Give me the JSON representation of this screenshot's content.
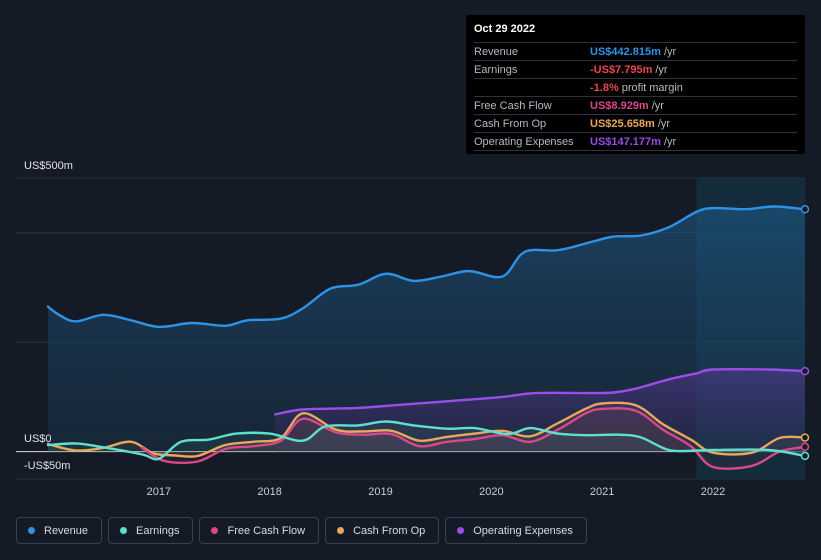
{
  "tooltip": {
    "date": "Oct 29 2022",
    "rows": [
      {
        "label": "Revenue",
        "value": "US$442.815m",
        "unit": "/yr",
        "color": "#2e93e6"
      },
      {
        "label": "Earnings",
        "value": "-US$7.795m",
        "unit": "/yr",
        "color": "#e84a4a"
      },
      {
        "label": "",
        "value": "-1.8%",
        "unit": "profit margin",
        "color": "#e84a4a"
      },
      {
        "label": "Free Cash Flow",
        "value": "US$8.929m",
        "unit": "/yr",
        "color": "#d9488a"
      },
      {
        "label": "Cash From Op",
        "value": "US$25.658m",
        "unit": "/yr",
        "color": "#e8a75c"
      },
      {
        "label": "Operating Expenses",
        "value": "US$147.177m",
        "unit": "/yr",
        "color": "#9b4de8"
      }
    ]
  },
  "legend": [
    {
      "label": "Revenue",
      "color": "#2e93e6"
    },
    {
      "label": "Earnings",
      "color": "#5ee0cc"
    },
    {
      "label": "Free Cash Flow",
      "color": "#d9488a"
    },
    {
      "label": "Cash From Op",
      "color": "#e8a75c"
    },
    {
      "label": "Operating Expenses",
      "color": "#9b4de8"
    }
  ],
  "chart_data": {
    "type": "line",
    "y_axis_labels": [
      "US$500m",
      "US$0",
      "-US$50m"
    ],
    "ylim": [
      -50,
      500
    ],
    "xlim": [
      2016.0,
      2022.83
    ],
    "x_ticks": [
      2017,
      2018,
      2019,
      2020,
      2021,
      2022
    ],
    "x_tick_labels": [
      "2017",
      "2018",
      "2019",
      "2020",
      "2021",
      "2022"
    ],
    "highlight_from": 2021.85,
    "series": [
      {
        "name": "Revenue",
        "color": "#2e93e6",
        "fill": true,
        "points": [
          [
            2016.0,
            265
          ],
          [
            2016.1,
            250
          ],
          [
            2016.25,
            238
          ],
          [
            2016.5,
            250
          ],
          [
            2016.75,
            240
          ],
          [
            2017.0,
            228
          ],
          [
            2017.3,
            235
          ],
          [
            2017.6,
            230
          ],
          [
            2017.8,
            240
          ],
          [
            2018.1,
            243
          ],
          [
            2018.3,
            262
          ],
          [
            2018.55,
            298
          ],
          [
            2018.8,
            305
          ],
          [
            2019.05,
            325
          ],
          [
            2019.3,
            312
          ],
          [
            2019.55,
            320
          ],
          [
            2019.8,
            330
          ],
          [
            2020.1,
            320
          ],
          [
            2020.3,
            365
          ],
          [
            2020.6,
            368
          ],
          [
            2020.9,
            383
          ],
          [
            2021.1,
            393
          ],
          [
            2021.35,
            395
          ],
          [
            2021.6,
            410
          ],
          [
            2021.85,
            438
          ],
          [
            2022.0,
            445
          ],
          [
            2022.3,
            443
          ],
          [
            2022.55,
            448
          ],
          [
            2022.83,
            442.8
          ]
        ]
      },
      {
        "name": "Operating Expenses",
        "color": "#9b4de8",
        "fill": true,
        "points": [
          [
            2018.05,
            68
          ],
          [
            2018.3,
            77
          ],
          [
            2018.8,
            80
          ],
          [
            2019.2,
            86
          ],
          [
            2019.6,
            92
          ],
          [
            2020.1,
            100
          ],
          [
            2020.4,
            107
          ],
          [
            2020.9,
            107
          ],
          [
            2021.1,
            108
          ],
          [
            2021.3,
            115
          ],
          [
            2021.6,
            132
          ],
          [
            2021.85,
            143
          ],
          [
            2022.0,
            150
          ],
          [
            2022.5,
            150
          ],
          [
            2022.83,
            147.2
          ]
        ]
      },
      {
        "name": "Cash From Op",
        "color": "#e8a75c",
        "fill": false,
        "points": [
          [
            2016.0,
            14
          ],
          [
            2016.25,
            2
          ],
          [
            2016.5,
            7
          ],
          [
            2016.75,
            18
          ],
          [
            2016.95,
            -3
          ],
          [
            2017.15,
            -7
          ],
          [
            2017.35,
            -8
          ],
          [
            2017.6,
            12
          ],
          [
            2017.85,
            18
          ],
          [
            2018.1,
            25
          ],
          [
            2018.3,
            70
          ],
          [
            2018.6,
            40
          ],
          [
            2018.85,
            37
          ],
          [
            2019.1,
            38
          ],
          [
            2019.35,
            20
          ],
          [
            2019.6,
            27
          ],
          [
            2019.85,
            33
          ],
          [
            2020.1,
            38
          ],
          [
            2020.35,
            28
          ],
          [
            2020.6,
            52
          ],
          [
            2020.85,
            78
          ],
          [
            2021.0,
            88
          ],
          [
            2021.3,
            85
          ],
          [
            2021.55,
            50
          ],
          [
            2021.8,
            22
          ],
          [
            2022.0,
            -2
          ],
          [
            2022.35,
            -2
          ],
          [
            2022.6,
            25
          ],
          [
            2022.83,
            25.7
          ]
        ]
      },
      {
        "name": "Free Cash Flow",
        "color": "#d9488a",
        "fill": false,
        "points": [
          [
            2016.85,
            7
          ],
          [
            2017.05,
            -17
          ],
          [
            2017.35,
            -18
          ],
          [
            2017.6,
            5
          ],
          [
            2017.85,
            10
          ],
          [
            2018.1,
            20
          ],
          [
            2018.3,
            60
          ],
          [
            2018.6,
            35
          ],
          [
            2018.85,
            31
          ],
          [
            2019.1,
            32
          ],
          [
            2019.35,
            10
          ],
          [
            2019.6,
            18
          ],
          [
            2019.85,
            23
          ],
          [
            2020.1,
            30
          ],
          [
            2020.35,
            18
          ],
          [
            2020.6,
            40
          ],
          [
            2020.85,
            70
          ],
          [
            2021.0,
            78
          ],
          [
            2021.3,
            75
          ],
          [
            2021.55,
            40
          ],
          [
            2021.8,
            10
          ],
          [
            2022.0,
            -28
          ],
          [
            2022.35,
            -26
          ],
          [
            2022.6,
            0
          ],
          [
            2022.83,
            8.9
          ]
        ]
      },
      {
        "name": "Earnings",
        "color": "#5ee0cc",
        "fill": false,
        "points": [
          [
            2016.0,
            12
          ],
          [
            2016.25,
            15
          ],
          [
            2016.5,
            8
          ],
          [
            2016.85,
            -5
          ],
          [
            2017.0,
            -13
          ],
          [
            2017.2,
            18
          ],
          [
            2017.45,
            22
          ],
          [
            2017.7,
            33
          ],
          [
            2018.0,
            33
          ],
          [
            2018.3,
            20
          ],
          [
            2018.5,
            46
          ],
          [
            2018.8,
            48
          ],
          [
            2019.05,
            55
          ],
          [
            2019.3,
            48
          ],
          [
            2019.6,
            42
          ],
          [
            2019.85,
            43
          ],
          [
            2020.15,
            32
          ],
          [
            2020.35,
            43
          ],
          [
            2020.6,
            33
          ],
          [
            2020.85,
            30
          ],
          [
            2021.15,
            31
          ],
          [
            2021.35,
            26
          ],
          [
            2021.6,
            3
          ],
          [
            2021.85,
            2
          ],
          [
            2022.0,
            3
          ],
          [
            2022.5,
            3
          ],
          [
            2022.83,
            -7.8
          ]
        ]
      }
    ]
  }
}
